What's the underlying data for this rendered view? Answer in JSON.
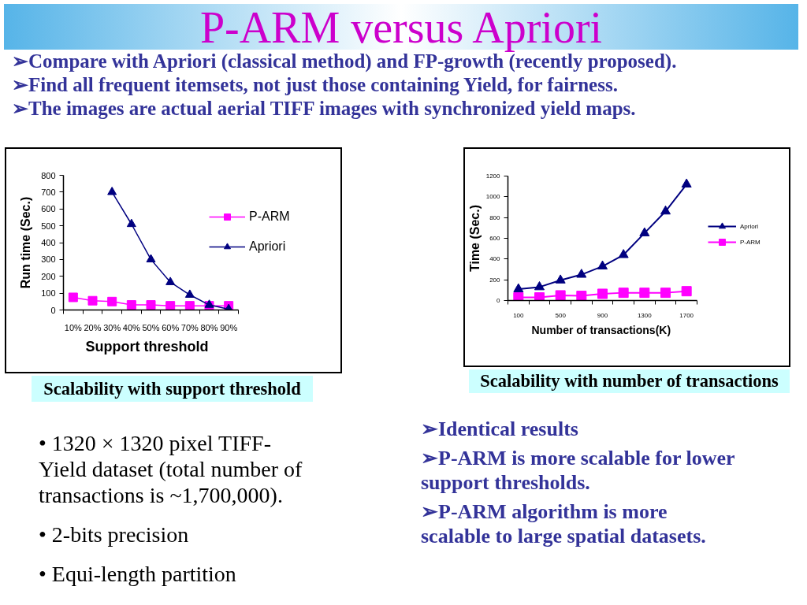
{
  "chart_data": [
    {
      "type": "other",
      "title": "P-ARM versus Apriori",
      "annotations": [
        "➢Compare with Apriori (classical method) and FP-growth (recently proposed).",
        "➢Find all frequent itemsets, not just those containing Yield, for fairness.",
        "➢The images are actual aerial TIFF images with synchronized yield maps."
      ]
    },
    {
      "type": "line",
      "categories": [
        "10%",
        "20%",
        "30%",
        "40%",
        "50%",
        "60%",
        "70%",
        "80%",
        "90%"
      ],
      "series": [
        {
          "name": "P-ARM",
          "color": "#ff00ff",
          "marker": "square",
          "values": [
            75,
            55,
            50,
            30,
            30,
            25,
            25,
            25,
            25
          ]
        },
        {
          "name": "Apriori",
          "color": "#000080",
          "marker": "triangle",
          "values": [
            null,
            null,
            700,
            510,
            300,
            165,
            90,
            30,
            5
          ]
        }
      ],
      "ylim": [
        0,
        800
      ],
      "yticks": [
        0,
        100,
        200,
        300,
        400,
        500,
        600,
        700,
        800
      ],
      "xlabel": "Support threshold",
      "ylabel": "Run time (Sec.)",
      "legend": "right",
      "annotations": [
        "Scalability with support threshold"
      ]
    },
    {
      "type": "line",
      "categories": [
        "100",
        null,
        "500",
        null,
        "900",
        null,
        "1300",
        null,
        "1700"
      ],
      "series": [
        {
          "name": "Apriori",
          "color": "#000080",
          "marker": "triangle",
          "values": [
            110,
            130,
            195,
            250,
            330,
            440,
            650,
            860,
            1120
          ]
        },
        {
          "name": "P-ARM",
          "color": "#ff00ff",
          "marker": "square",
          "values": [
            30,
            30,
            50,
            45,
            65,
            75,
            75,
            75,
            90
          ]
        }
      ],
      "ylim": [
        0,
        1200
      ],
      "yticks": [
        0,
        200,
        400,
        600,
        800,
        1000,
        1200
      ],
      "xlabel": "Number of transactions(K)",
      "ylabel": "Time (Sec.)",
      "legend": "right",
      "annotations": [
        "Scalability with number of transactions"
      ]
    },
    {
      "type": "other",
      "annotations": [
        "• 1320 × 1320 pixel TIFF-Yield dataset (total number of transactions is ~1,700,000).",
        "• 2-bits precision",
        "• Equi-length partition"
      ]
    },
    {
      "type": "other",
      "annotations": [
        "➢Identical results",
        "➢P-ARM is more scalable for lower support thresholds.",
        "➢P-ARM algorithm is more scalable to large spatial datasets."
      ]
    }
  ]
}
